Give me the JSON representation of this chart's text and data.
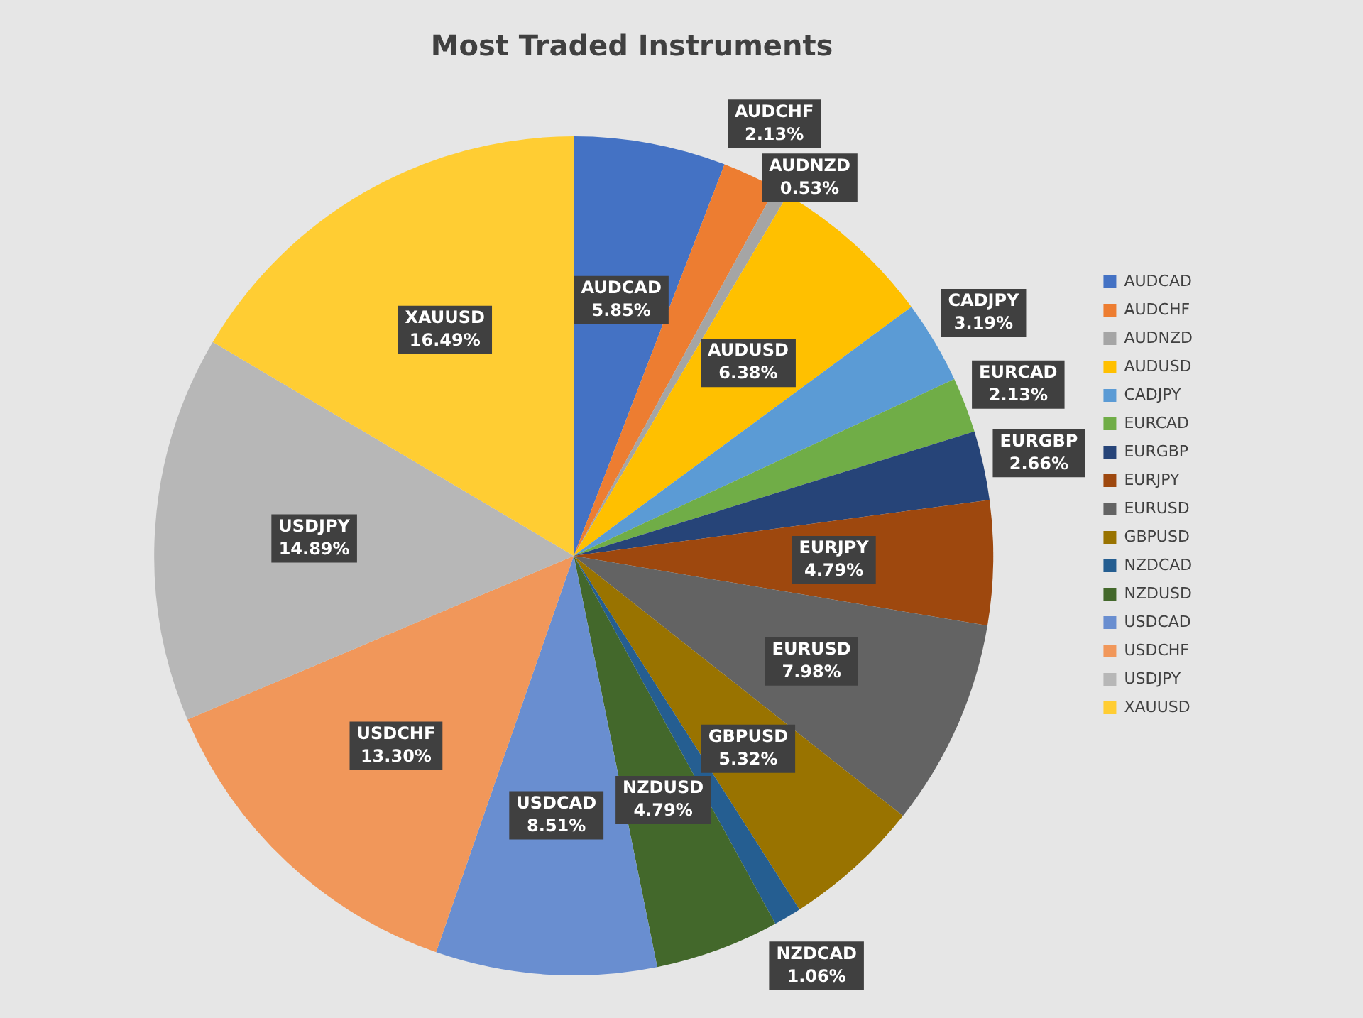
{
  "chart_data": {
    "type": "pie",
    "title": "Most Traded Instruments",
    "categories": [
      "AUDCAD",
      "AUDCHF",
      "AUDNZD",
      "AUDUSD",
      "CADJPY",
      "EURCAD",
      "EURGBP",
      "EURJPY",
      "EURUSD",
      "GBPUSD",
      "NZDCAD",
      "NZDUSD",
      "USDCAD",
      "USDCHF",
      "USDJPY",
      "XAUUSD"
    ],
    "values": [
      5.85,
      2.13,
      0.53,
      6.38,
      3.19,
      2.13,
      2.66,
      4.79,
      7.98,
      5.32,
      1.06,
      4.79,
      8.51,
      13.3,
      14.89,
      16.49
    ],
    "value_labels": [
      "5.85%",
      "2.13%",
      "0.53%",
      "6.38%",
      "3.19%",
      "2.13%",
      "2.66%",
      "4.79%",
      "7.98%",
      "5.32%",
      "1.06%",
      "4.79%",
      "8.51%",
      "13.30%",
      "14.89%",
      "16.49%"
    ],
    "colors": [
      "#4472c4",
      "#ed7d31",
      "#a5a5a5",
      "#ffc000",
      "#5b9bd5",
      "#70ad47",
      "#264478",
      "#9e480e",
      "#636363",
      "#997300",
      "#255e91",
      "#43682b",
      "#698ed0",
      "#f1975a",
      "#b7b7b7",
      "#ffcd33"
    ],
    "legend": "right"
  }
}
